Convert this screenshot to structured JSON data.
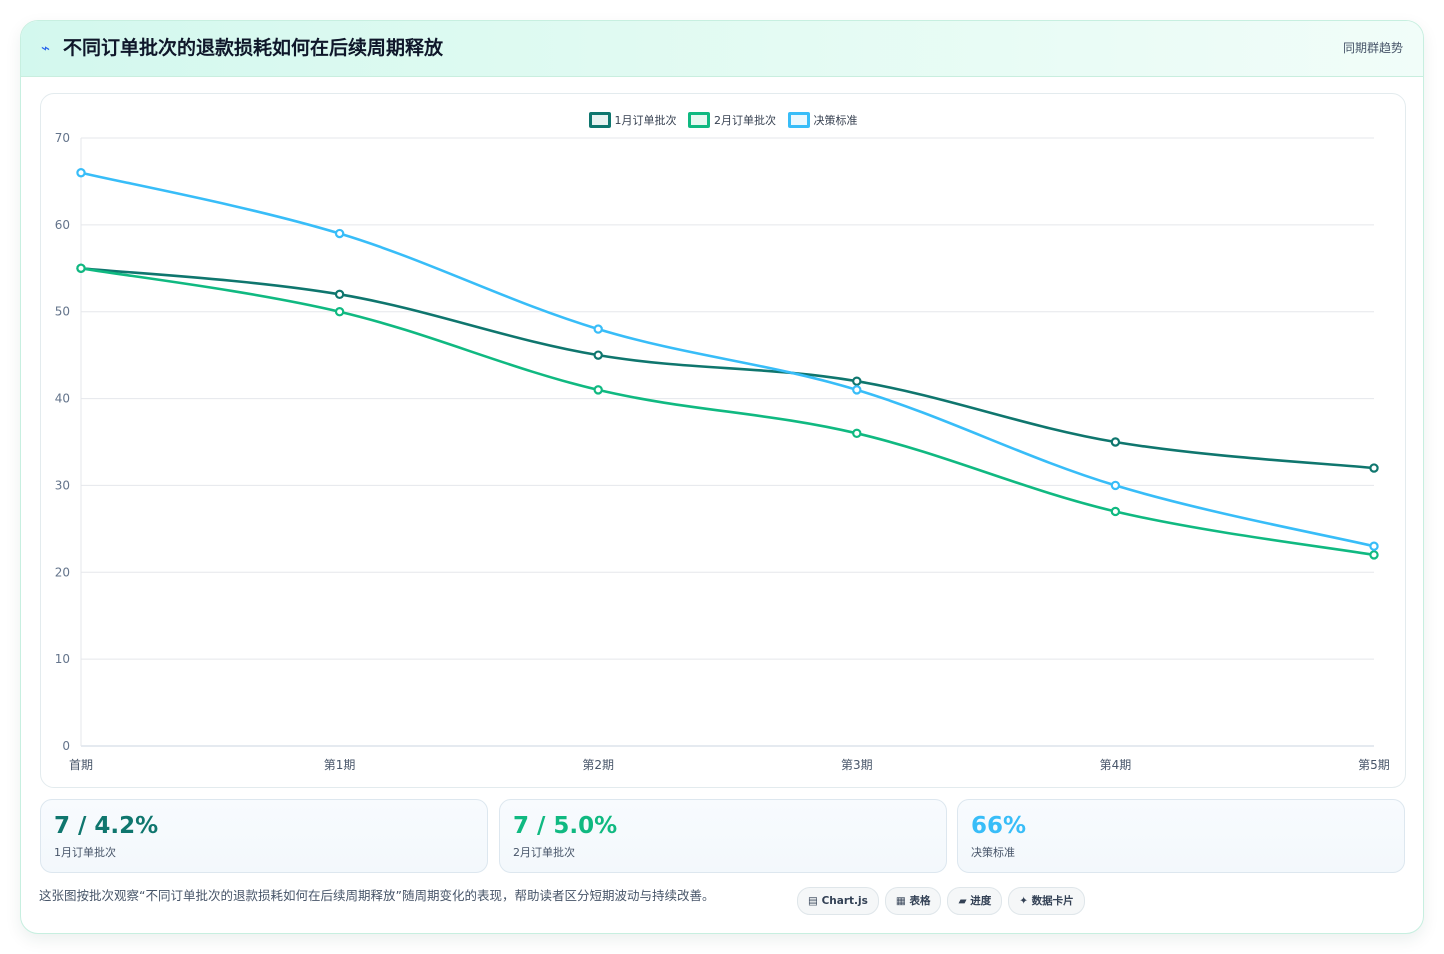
{
  "header": {
    "icon": "pulse-icon",
    "title": "不同订单批次的退款损耗如何在后续周期释放",
    "tag": "同期群趋势"
  },
  "chart_data": {
    "type": "line",
    "categories": [
      "首期",
      "第1期",
      "第2期",
      "第3期",
      "第4期",
      "第5期"
    ],
    "series": [
      {
        "name": "1月订单批次",
        "color": "#0f766e",
        "values": [
          55,
          52,
          45,
          42,
          35,
          32
        ]
      },
      {
        "name": "2月订单批次",
        "color": "#10b981",
        "values": [
          55,
          50,
          41,
          36,
          27,
          22
        ]
      },
      {
        "name": "决策标准",
        "color": "#38bdf8",
        "values": [
          66,
          59,
          48,
          41,
          30,
          23
        ]
      }
    ],
    "ylim": [
      0,
      70
    ],
    "yticks": [
      0,
      10,
      20,
      30,
      40,
      50,
      60,
      70
    ],
    "legend": "top-center",
    "grid": true
  },
  "kpis": [
    {
      "value": "7 / 4.2%",
      "label": "1月订单批次",
      "color": "#0f766e"
    },
    {
      "value": "7 / 5.0%",
      "label": "2月订单批次",
      "color": "#10b981"
    },
    {
      "value": "66%",
      "label": "决策标准",
      "color": "#38bdf8"
    }
  ],
  "note": "这张图按批次观察“不同订单批次的退款损耗如何在后续周期释放”随周期变化的表现，帮助读者区分短期波动与持续改善。",
  "chips": [
    {
      "icon": "chart-icon",
      "glyph": "▤",
      "label": "Chart.js"
    },
    {
      "icon": "table-icon",
      "glyph": "▦",
      "label": "表格"
    },
    {
      "icon": "progress-icon",
      "glyph": "▰",
      "label": "进度"
    },
    {
      "icon": "sparkle-icon",
      "glyph": "✦",
      "label": "数据卡片"
    }
  ]
}
